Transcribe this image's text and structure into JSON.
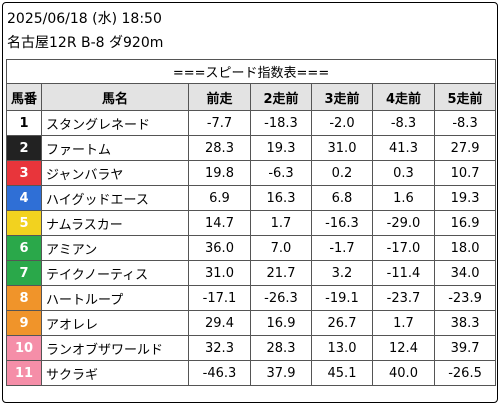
{
  "header": {
    "datetime": "2025/06/18 (水) 18:50",
    "race": "名古屋12R B-8 ダ920m"
  },
  "table": {
    "title": "===スピード指数表===",
    "columns": [
      "馬番",
      "馬名",
      "前走",
      "2走前",
      "3走前",
      "4走前",
      "5走前"
    ],
    "rows": [
      {
        "no": "1",
        "name": "スタングレネード",
        "v": [
          "-7.7",
          "-18.3",
          "-2.0",
          "-8.3",
          "-8.3"
        ],
        "bg": "#ffffff",
        "fg": "#000000"
      },
      {
        "no": "2",
        "name": "ファートム",
        "v": [
          "28.3",
          "19.3",
          "31.0",
          "41.3",
          "27.9"
        ],
        "bg": "#222222",
        "fg": "#ffffff"
      },
      {
        "no": "3",
        "name": "ジャンバラヤ",
        "v": [
          "19.8",
          "-6.3",
          "0.2",
          "0.3",
          "10.7"
        ],
        "bg": "#e8353b",
        "fg": "#ffffff"
      },
      {
        "no": "4",
        "name": "ハイグッドエース",
        "v": [
          "6.9",
          "16.3",
          "6.8",
          "1.6",
          "19.3"
        ],
        "bg": "#2f6fd6",
        "fg": "#ffffff"
      },
      {
        "no": "5",
        "name": "ナムラスカー",
        "v": [
          "14.7",
          "1.7",
          "-16.3",
          "-29.0",
          "16.9"
        ],
        "bg": "#f2d21f",
        "fg": "#ffffff"
      },
      {
        "no": "6",
        "name": "アミアン",
        "v": [
          "36.0",
          "7.0",
          "-1.7",
          "-17.0",
          "18.0"
        ],
        "bg": "#2aa84a",
        "fg": "#ffffff"
      },
      {
        "no": "7",
        "name": "テイクノーティス",
        "v": [
          "31.0",
          "21.7",
          "3.2",
          "-11.4",
          "34.0"
        ],
        "bg": "#2aa84a",
        "fg": "#ffffff"
      },
      {
        "no": "8",
        "name": "ハートループ",
        "v": [
          "-17.1",
          "-26.3",
          "-19.1",
          "-23.7",
          "-23.9"
        ],
        "bg": "#f0942a",
        "fg": "#ffffff"
      },
      {
        "no": "9",
        "name": "アオレレ",
        "v": [
          "29.4",
          "16.9",
          "26.7",
          "1.7",
          "38.3"
        ],
        "bg": "#f0942a",
        "fg": "#ffffff"
      },
      {
        "no": "10",
        "name": "ランオブザワールド",
        "v": [
          "32.3",
          "28.3",
          "13.0",
          "12.4",
          "39.7"
        ],
        "bg": "#f58ea8",
        "fg": "#ffffff"
      },
      {
        "no": "11",
        "name": "サクラギ",
        "v": [
          "-46.3",
          "37.9",
          "45.1",
          "40.0",
          "-26.5"
        ],
        "bg": "#f58ea8",
        "fg": "#ffffff"
      }
    ]
  }
}
